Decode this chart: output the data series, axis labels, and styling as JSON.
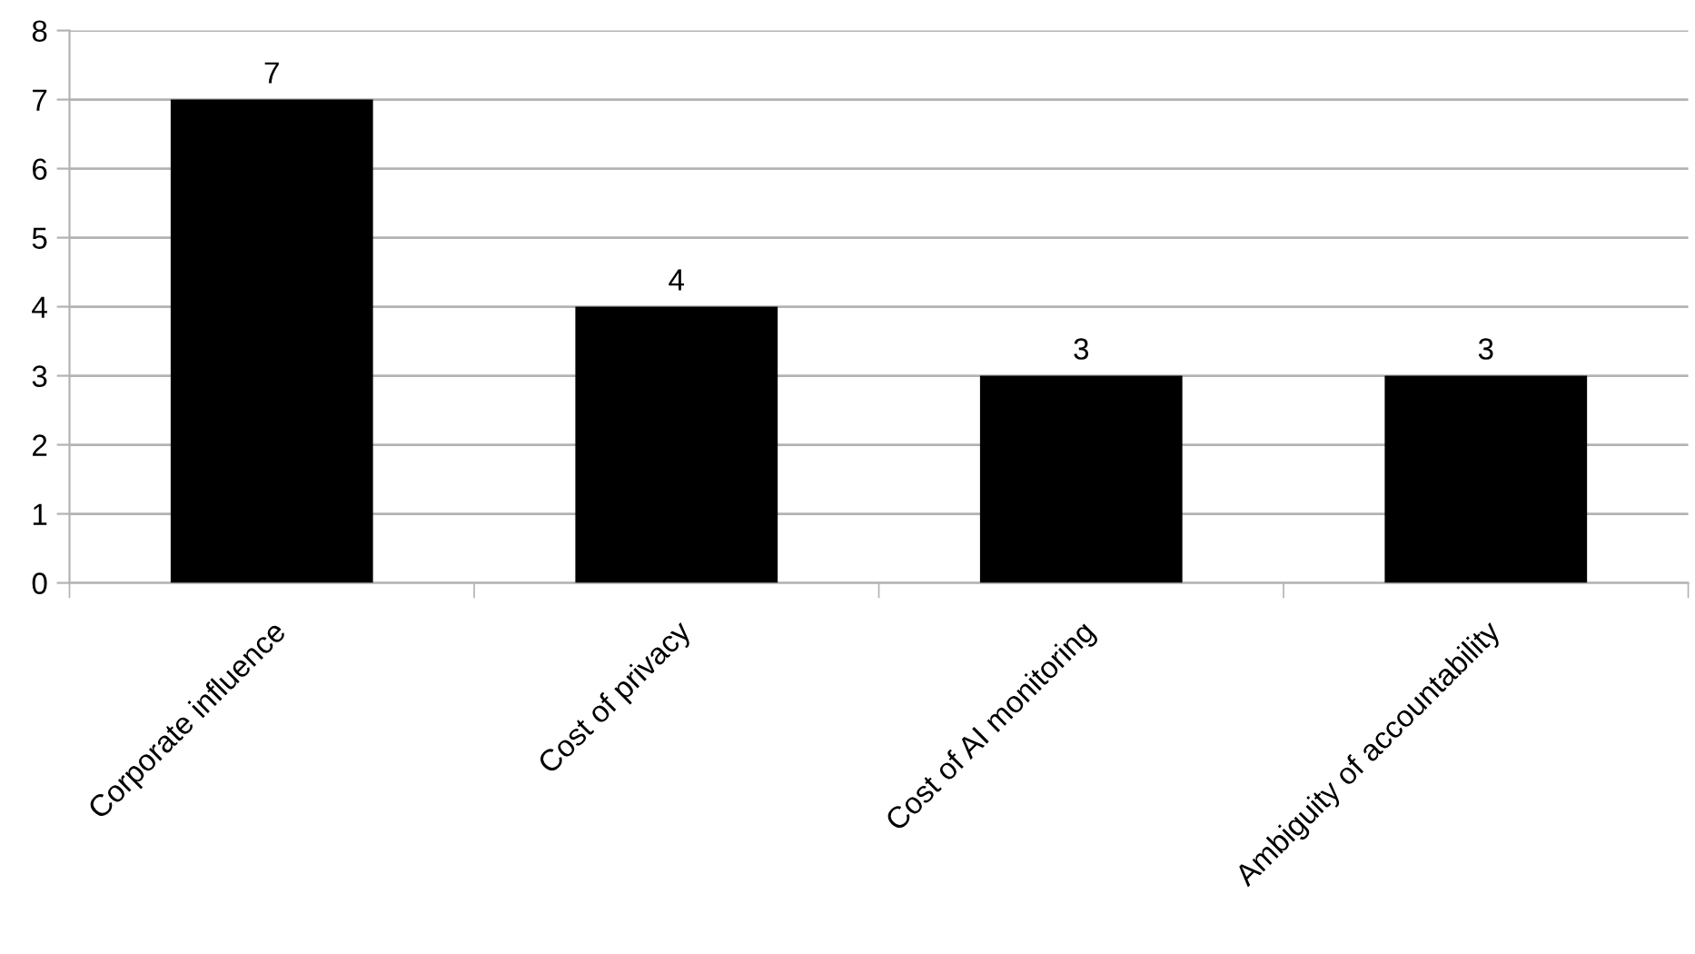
{
  "chart_data": {
    "type": "bar",
    "categories": [
      "Corporate influence",
      "Cost of privacy",
      "Cost of AI monitoring",
      "Ambiguity of accountability"
    ],
    "values": [
      7,
      4,
      3,
      3
    ],
    "color": "#000000",
    "ylim": [
      0,
      8
    ],
    "yticks": [
      0,
      1,
      2,
      3,
      4,
      5,
      6,
      7,
      8
    ],
    "grid": "y",
    "data_labels": true
  }
}
